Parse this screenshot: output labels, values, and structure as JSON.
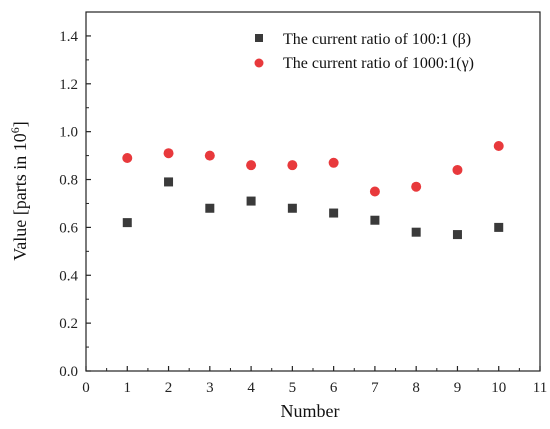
{
  "chart_data": {
    "type": "scatter",
    "xlabel": "Number",
    "ylabel_main": "Value [parts in 10",
    "ylabel_sup": "6",
    "ylabel_end": "]",
    "xlim": [
      0,
      11
    ],
    "ylim": [
      0,
      1.5
    ],
    "xticks": [
      "0",
      "1",
      "2",
      "3",
      "4",
      "5",
      "6",
      "7",
      "8",
      "9",
      "10",
      "11"
    ],
    "yticks": [
      "0.0",
      "0.2",
      "0.4",
      "0.6",
      "0.8",
      "1.0",
      "1.2",
      "1.4"
    ],
    "x": [
      1,
      2,
      3,
      4,
      5,
      6,
      7,
      8,
      9,
      10
    ],
    "series": [
      {
        "name": "The current ratio of 100:1 (β)",
        "marker": "square",
        "color": "#3a3a3a",
        "values": [
          0.62,
          0.79,
          0.68,
          0.71,
          0.68,
          0.66,
          0.63,
          0.58,
          0.57,
          0.6
        ]
      },
      {
        "name": "The current ratio of 1000:1(γ)",
        "marker": "circle",
        "color": "#e8393c",
        "values": [
          0.89,
          0.91,
          0.9,
          0.86,
          0.86,
          0.87,
          0.75,
          0.77,
          0.84,
          0.94
        ]
      }
    ],
    "legend_position": "top-right",
    "grid": false
  }
}
